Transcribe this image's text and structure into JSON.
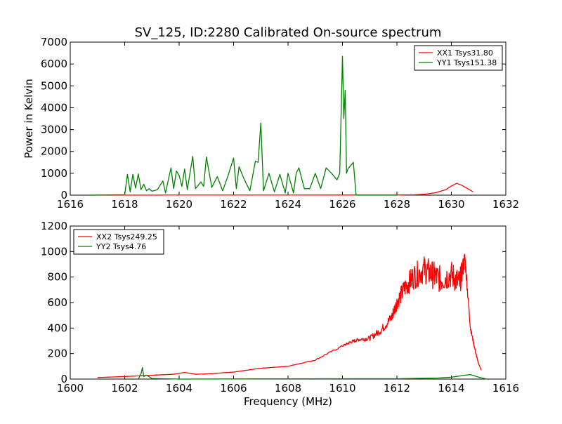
{
  "chart_data": {
    "title": "SV_125, ID:2280 Calibrated On-source spectrum",
    "xlabel": "Frequency (MHz)",
    "panels": [
      {
        "type": "line",
        "ylabel": "Power in Kelvin",
        "xlim": [
          1616,
          1632
        ],
        "ylim": [
          0,
          7000
        ],
        "xticks": [
          "1616",
          "1618",
          "1620",
          "1622",
          "1624",
          "1626",
          "1628",
          "1630",
          "1632"
        ],
        "yticks": [
          "0",
          "1000",
          "2000",
          "3000",
          "4000",
          "5000",
          "6000",
          "7000"
        ],
        "legend_position": "top-right",
        "series": [
          {
            "name": "XX1 Tsys31.80",
            "color": "#ff0000",
            "x": [
              1616.7,
              1620,
              1624,
              1628,
              1628.6,
              1629,
              1629.4,
              1629.8,
              1630.0,
              1630.2,
              1630.4,
              1630.6,
              1630.8
            ],
            "y": [
              0,
              2,
              3,
              5,
              15,
              40,
              110,
              250,
              420,
              540,
              440,
              300,
              150
            ]
          },
          {
            "name": "YY1 Tsys151.38",
            "color": "#008000",
            "x": [
              1616.7,
              1618.0,
              1618.1,
              1618.2,
              1618.3,
              1618.4,
              1618.5,
              1618.6,
              1618.7,
              1618.8,
              1618.9,
              1619.0,
              1619.2,
              1619.4,
              1619.5,
              1619.7,
              1619.8,
              1619.9,
              1620.0,
              1620.1,
              1620.2,
              1620.3,
              1620.5,
              1620.6,
              1620.8,
              1620.9,
              1621.0,
              1621.2,
              1621.4,
              1621.6,
              1621.8,
              1622.0,
              1622.1,
              1622.2,
              1622.3,
              1622.4,
              1622.6,
              1622.8,
              1622.9,
              1623.0,
              1623.1,
              1623.3,
              1623.5,
              1623.7,
              1623.9,
              1624.0,
              1624.2,
              1624.3,
              1624.4,
              1624.6,
              1624.8,
              1625.0,
              1625.2,
              1625.4,
              1625.6,
              1625.8,
              1625.9,
              1626.0,
              1626.05,
              1626.1,
              1626.15,
              1626.2,
              1626.4,
              1626.5,
              1626.6,
              1626.7,
              1627.0,
              1628.0
            ],
            "y": [
              0,
              20,
              950,
              150,
              950,
              320,
              970,
              250,
              500,
              200,
              300,
              180,
              250,
              650,
              100,
              1250,
              300,
              1100,
              900,
              400,
              1200,
              250,
              1780,
              300,
              600,
              400,
              1750,
              350,
              850,
              200,
              900,
              1700,
              300,
              1300,
              1000,
              700,
              200,
              1550,
              1500,
              3300,
              200,
              1000,
              150,
              950,
              100,
              1000,
              100,
              1000,
              1250,
              300,
              300,
              1000,
              300,
              1250,
              1000,
              700,
              1000,
              6350,
              3500,
              4800,
              1000,
              1200,
              1500,
              0,
              0,
              0,
              0,
              0
            ]
          }
        ]
      },
      {
        "type": "line",
        "ylabel": "",
        "xlim": [
          1600,
          1616
        ],
        "ylim": [
          0,
          1200
        ],
        "xticks": [
          "1600",
          "1602",
          "1604",
          "1606",
          "1608",
          "1610",
          "1612",
          "1614",
          "1616"
        ],
        "yticks": [
          "0",
          "200",
          "400",
          "600",
          "800",
          "1000",
          "1200"
        ],
        "legend_position": "top-left",
        "series": [
          {
            "name": "XX2 Tsys249.25",
            "color": "#ff0000",
            "x": [
              1601.0,
              1602.0,
              1603.0,
              1603.8,
              1604.2,
              1604.6,
              1605.0,
              1606.0,
              1607.0,
              1608.0,
              1609.0,
              1610.0,
              1610.3,
              1610.6,
              1611.0,
              1611.4,
              1611.8,
              1612.0,
              1612.3,
              1612.6,
              1613.0,
              1613.3,
              1613.6,
              1614.0,
              1614.3,
              1614.5,
              1614.7,
              1614.9,
              1615.0,
              1615.1
            ],
            "y": [
              12,
              20,
              30,
              38,
              52,
              38,
              40,
              55,
              85,
              100,
              150,
              260,
              290,
              310,
              320,
              380,
              480,
              600,
              720,
              800,
              860,
              820,
              780,
              820,
              750,
              950,
              400,
              200,
              120,
              70
            ],
            "noise": [
              0,
              0,
              0,
              0,
              0,
              0,
              0,
              0,
              0,
              0,
              4,
              8,
              12,
              14,
              20,
              30,
              45,
              60,
              80,
              100,
              110,
              110,
              110,
              110,
              110,
              60,
              20,
              10,
              0,
              0
            ]
          },
          {
            "name": "YY2 Tsys4.76",
            "color": "#008000",
            "x": [
              1602.5,
              1602.6,
              1602.65,
              1602.7,
              1602.8,
              1603.0,
              1604.0,
              1608.0,
              1612.0,
              1613.5,
              1614.0,
              1614.5,
              1614.7,
              1615.0,
              1615.3
            ],
            "y": [
              0,
              40,
              90,
              20,
              30,
              5,
              0,
              2,
              3,
              8,
              15,
              30,
              35,
              15,
              0
            ]
          }
        ]
      }
    ]
  }
}
